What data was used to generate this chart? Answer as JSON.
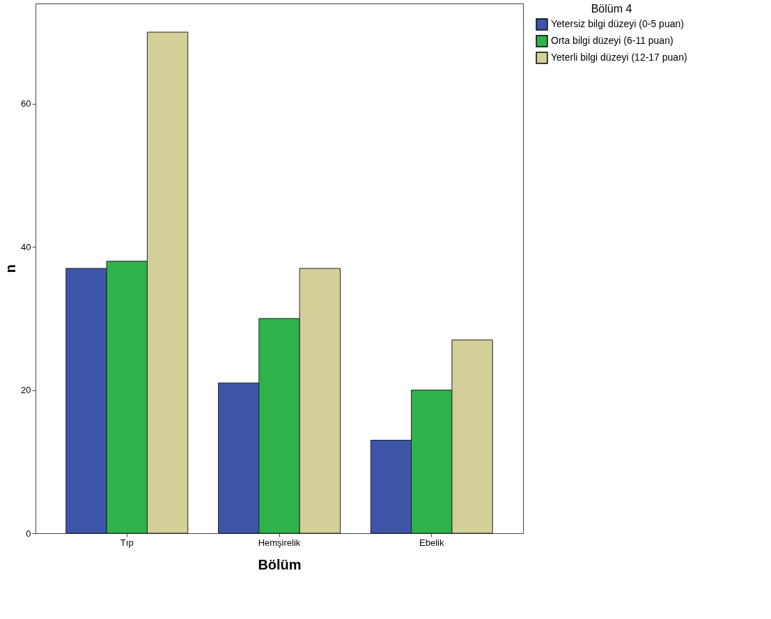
{
  "chart_data": {
    "type": "bar",
    "xlabel": "Bölüm",
    "ylabel": "n",
    "legend_title": "Bölüm 4",
    "categories": [
      "Tıp",
      "Hemşirelik",
      "Ebelik"
    ],
    "series": [
      {
        "name": "Yetersiz bilgi düzeyi (0-5 puan)",
        "color": "#3d55a8",
        "values": [
          37,
          21,
          13
        ]
      },
      {
        "name": "Orta bilgi düzeyi (6-11 puan)",
        "color": "#2db34a",
        "values": [
          38,
          30,
          20
        ]
      },
      {
        "name": "Yeterli bilgi düzeyi (12-17 puan)",
        "color": "#d4cf98",
        "values": [
          70,
          37,
          27
        ]
      }
    ],
    "ylim": [
      0,
      74
    ],
    "yticks": [
      0,
      20,
      40,
      60
    ],
    "grid": false,
    "legend": "top right"
  }
}
